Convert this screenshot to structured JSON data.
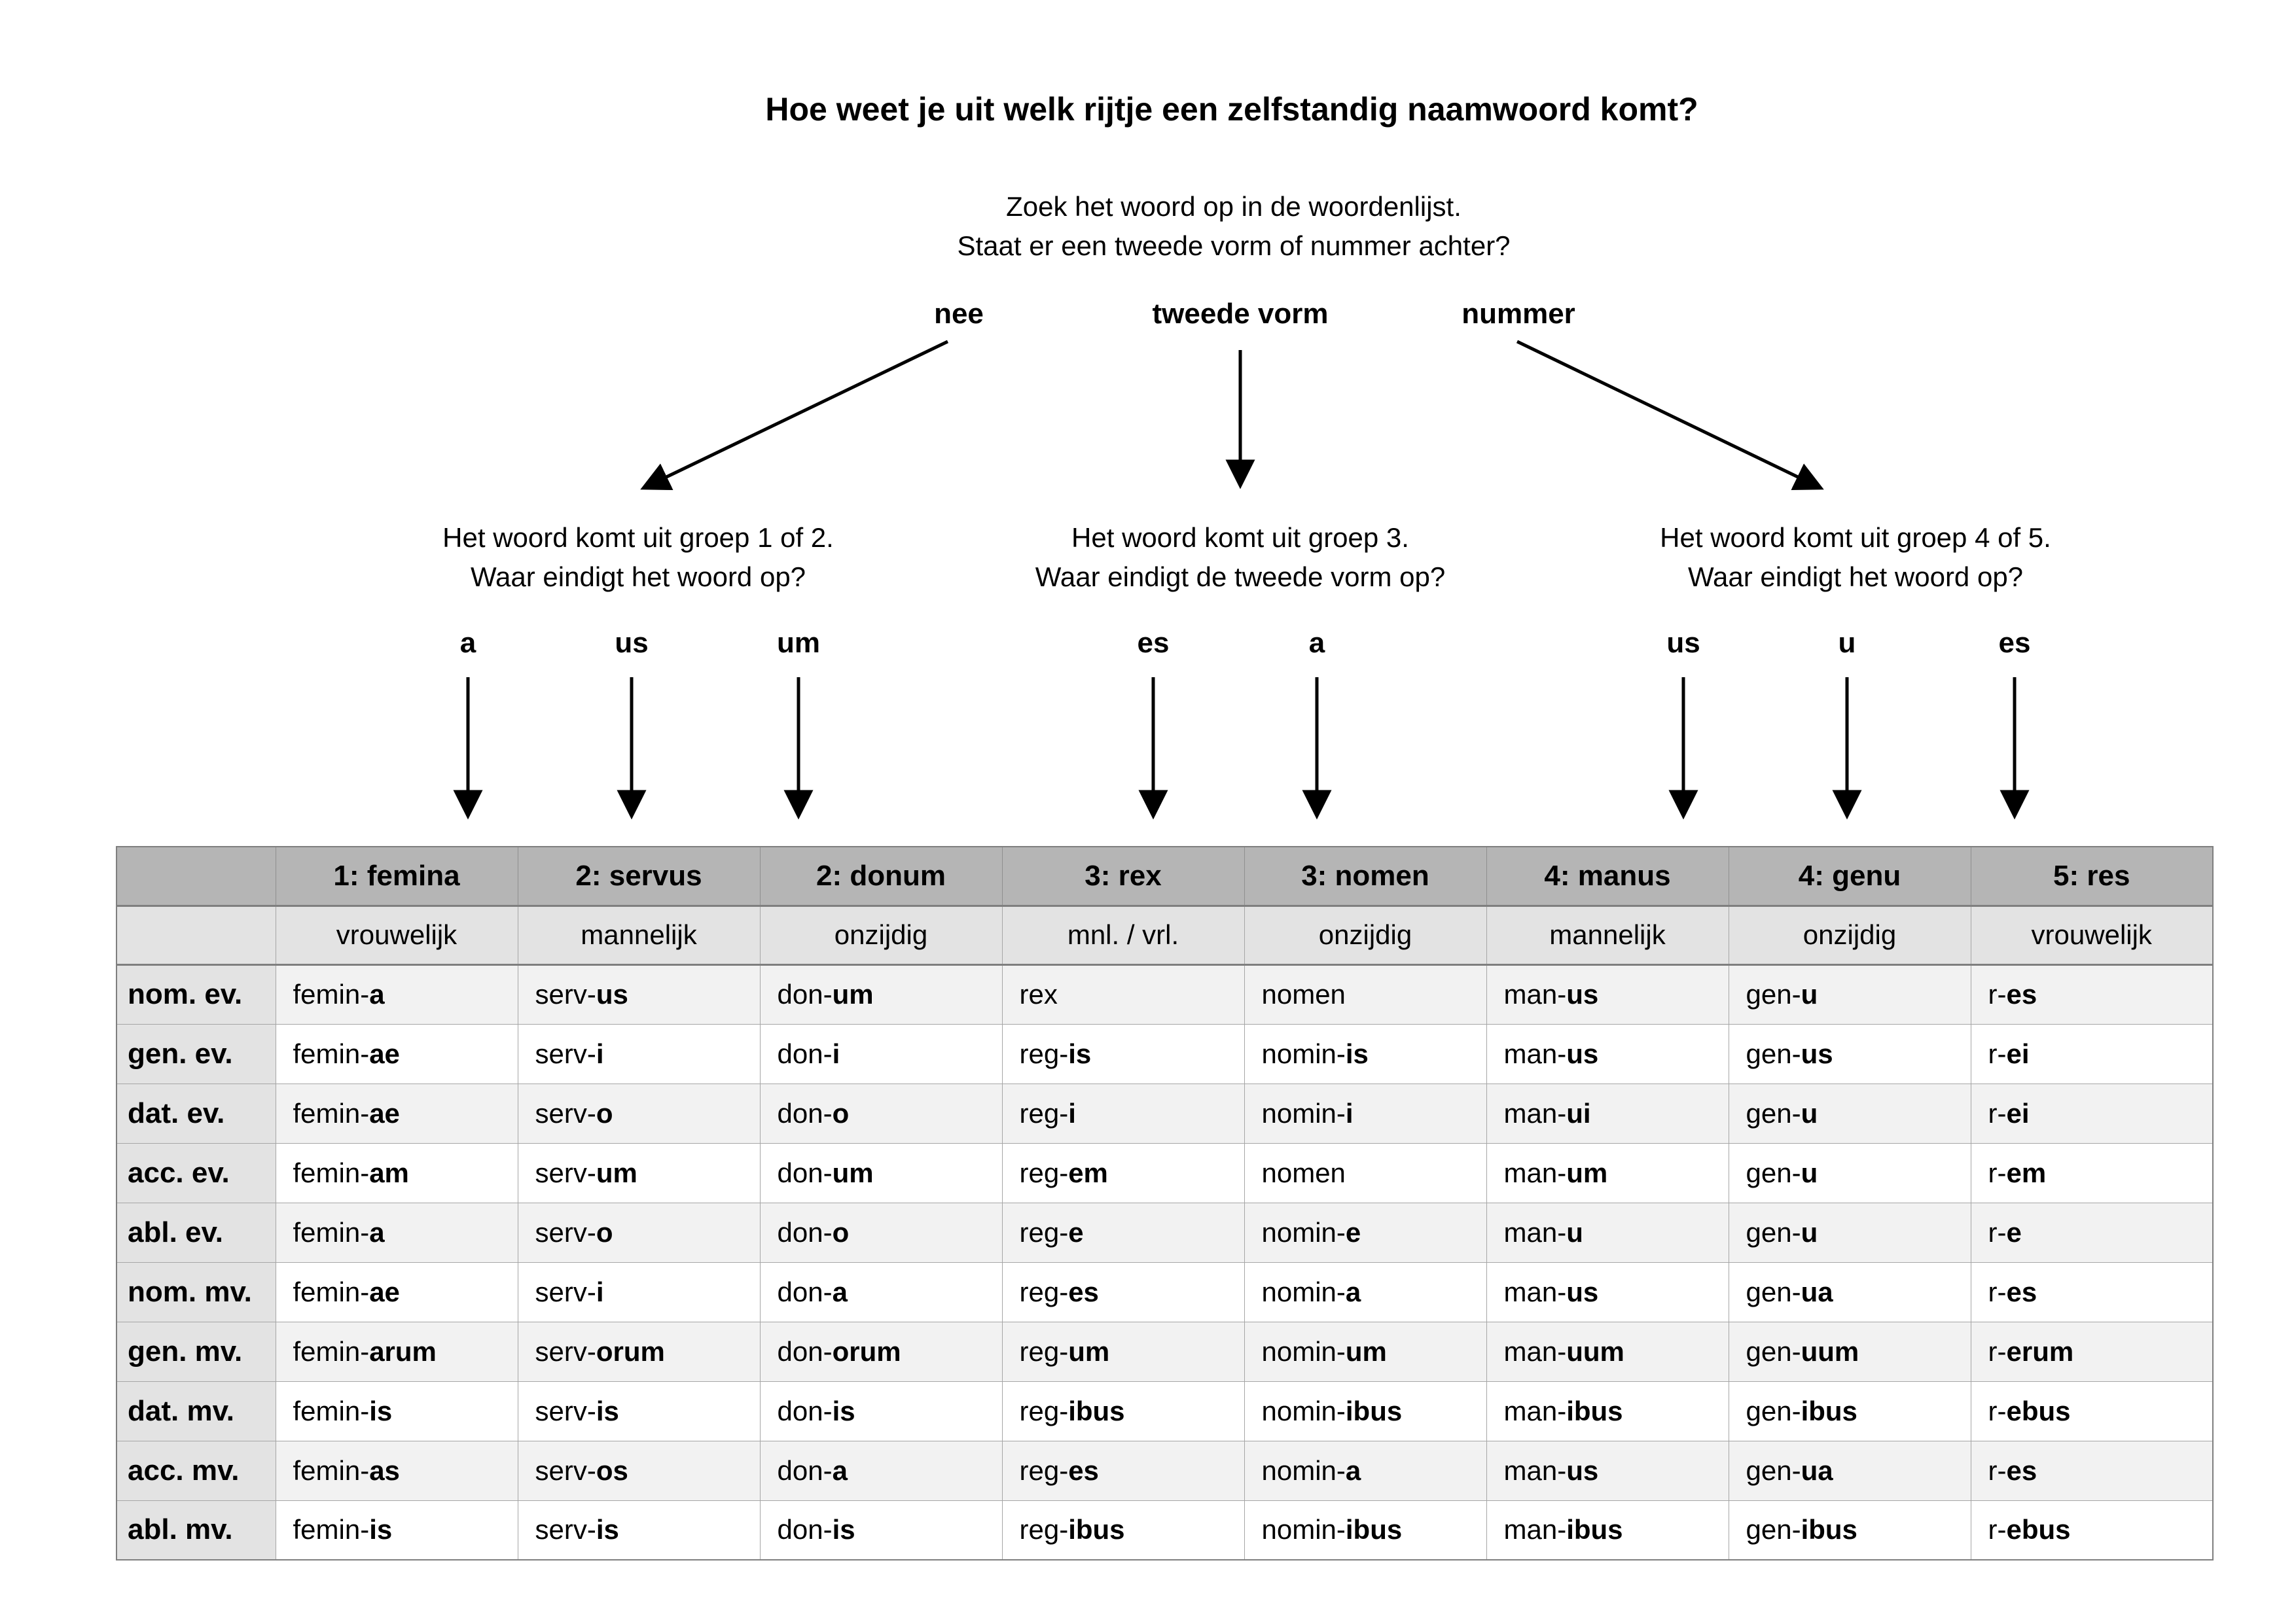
{
  "title": "Hoe weet je uit welk rijtje een zelfstandig naamwoord komt?",
  "intro": {
    "line1": "Zoek het woord op in de woordenlijst.",
    "line2": "Staat er een tweede vorm of nummer achter?"
  },
  "decision": {
    "options": [
      {
        "label": "nee"
      },
      {
        "label": "tweede vorm"
      },
      {
        "label": "nummer"
      }
    ]
  },
  "branches": [
    {
      "line1": "Het woord komt uit groep 1 of 2.",
      "line2": "Waar eindigt het woord op?",
      "endings": [
        "a",
        "us",
        "um"
      ]
    },
    {
      "line1": "Het woord komt uit groep 3.",
      "line2": "Waar eindigt de tweede vorm op?",
      "endings": [
        "es",
        "a"
      ]
    },
    {
      "line1": "Het woord komt uit groep 4 of 5.",
      "line2": "Waar eindigt het woord op?",
      "endings": [
        "us",
        "u",
        "es"
      ]
    }
  ],
  "table": {
    "group_headers": [
      "1: femina",
      "2: servus",
      "2: donum",
      "3: rex",
      "3: nomen",
      "4: manus",
      "4: genu",
      "5: res"
    ],
    "gender_headers": [
      "vrouwelijk",
      "mannelijk",
      "onzijdig",
      "mnl. / vrl.",
      "onzijdig",
      "mannelijk",
      "onzijdig",
      "vrouwelijk"
    ],
    "rows": [
      {
        "label": "nom. ev.",
        "cells": [
          [
            "femin-",
            "a"
          ],
          [
            "serv-",
            "us"
          ],
          [
            "don-",
            "um"
          ],
          [
            "rex",
            ""
          ],
          [
            "nomen",
            ""
          ],
          [
            "man-",
            "us"
          ],
          [
            "gen-",
            "u"
          ],
          [
            "r-",
            "es"
          ]
        ]
      },
      {
        "label": "gen. ev.",
        "cells": [
          [
            "femin-",
            "ae"
          ],
          [
            "serv-",
            "i"
          ],
          [
            "don-",
            "i"
          ],
          [
            "reg-",
            "is"
          ],
          [
            "nomin-",
            "is"
          ],
          [
            "man-",
            "us"
          ],
          [
            "gen-",
            "us"
          ],
          [
            "r-",
            "ei"
          ]
        ]
      },
      {
        "label": "dat. ev.",
        "cells": [
          [
            "femin-",
            "ae"
          ],
          [
            "serv-",
            "o"
          ],
          [
            "don-",
            "o"
          ],
          [
            "reg-",
            "i"
          ],
          [
            "nomin-",
            "i"
          ],
          [
            "man-",
            "ui"
          ],
          [
            "gen-",
            "u"
          ],
          [
            "r-",
            "ei"
          ]
        ]
      },
      {
        "label": "acc. ev.",
        "cells": [
          [
            "femin-",
            "am"
          ],
          [
            "serv-",
            "um"
          ],
          [
            "don-",
            "um"
          ],
          [
            "reg-",
            "em"
          ],
          [
            "nomen",
            ""
          ],
          [
            "man-",
            "um"
          ],
          [
            "gen-",
            "u"
          ],
          [
            "r-",
            "em"
          ]
        ]
      },
      {
        "label": "abl. ev.",
        "cells": [
          [
            "femin-",
            "a"
          ],
          [
            "serv-",
            "o"
          ],
          [
            "don-",
            "o"
          ],
          [
            "reg-",
            "e"
          ],
          [
            "nomin-",
            "e"
          ],
          [
            "man-",
            "u"
          ],
          [
            "gen-",
            "u"
          ],
          [
            "r-",
            "e"
          ]
        ]
      },
      {
        "label": "nom. mv.",
        "cells": [
          [
            "femin-",
            "ae"
          ],
          [
            "serv-",
            "i"
          ],
          [
            "don-",
            "a"
          ],
          [
            "reg-",
            "es"
          ],
          [
            "nomin-",
            "a"
          ],
          [
            "man-",
            "us"
          ],
          [
            "gen-",
            "ua"
          ],
          [
            "r-",
            "es"
          ]
        ]
      },
      {
        "label": "gen. mv.",
        "cells": [
          [
            "femin-",
            "arum"
          ],
          [
            "serv-",
            "orum"
          ],
          [
            "don-",
            "orum"
          ],
          [
            "reg-",
            "um"
          ],
          [
            "nomin-",
            "um"
          ],
          [
            "man-",
            "uum"
          ],
          [
            "gen-",
            "uum"
          ],
          [
            "r-",
            "erum"
          ]
        ]
      },
      {
        "label": "dat. mv.",
        "cells": [
          [
            "femin-",
            "is"
          ],
          [
            "serv-",
            "is"
          ],
          [
            "don-",
            "is"
          ],
          [
            "reg-",
            "ibus"
          ],
          [
            "nomin-",
            "ibus"
          ],
          [
            "man-",
            "ibus"
          ],
          [
            "gen-",
            "ibus"
          ],
          [
            "r-",
            "ebus"
          ]
        ]
      },
      {
        "label": "acc. mv.",
        "cells": [
          [
            "femin-",
            "as"
          ],
          [
            "serv-",
            "os"
          ],
          [
            "don-",
            "a"
          ],
          [
            "reg-",
            "es"
          ],
          [
            "nomin-",
            "a"
          ],
          [
            "man-",
            "us"
          ],
          [
            "gen-",
            "ua"
          ],
          [
            "r-",
            "es"
          ]
        ]
      },
      {
        "label": "abl. mv.",
        "cells": [
          [
            "femin-",
            "is"
          ],
          [
            "serv-",
            "is"
          ],
          [
            "don-",
            "is"
          ],
          [
            "reg-",
            "ibus"
          ],
          [
            "nomin-",
            "ibus"
          ],
          [
            "man-",
            "ibus"
          ],
          [
            "gen-",
            "ibus"
          ],
          [
            "r-",
            "ebus"
          ]
        ]
      }
    ]
  },
  "colors": {
    "header_bg": "#b5b5b5",
    "subheader_bg": "#e3e3e3",
    "row_alt_bg": "#f2f2f2",
    "row_bg": "#ffffff",
    "border": "#a6a6a6",
    "border_dark": "#7f7f7f",
    "arrow": "#000000"
  }
}
